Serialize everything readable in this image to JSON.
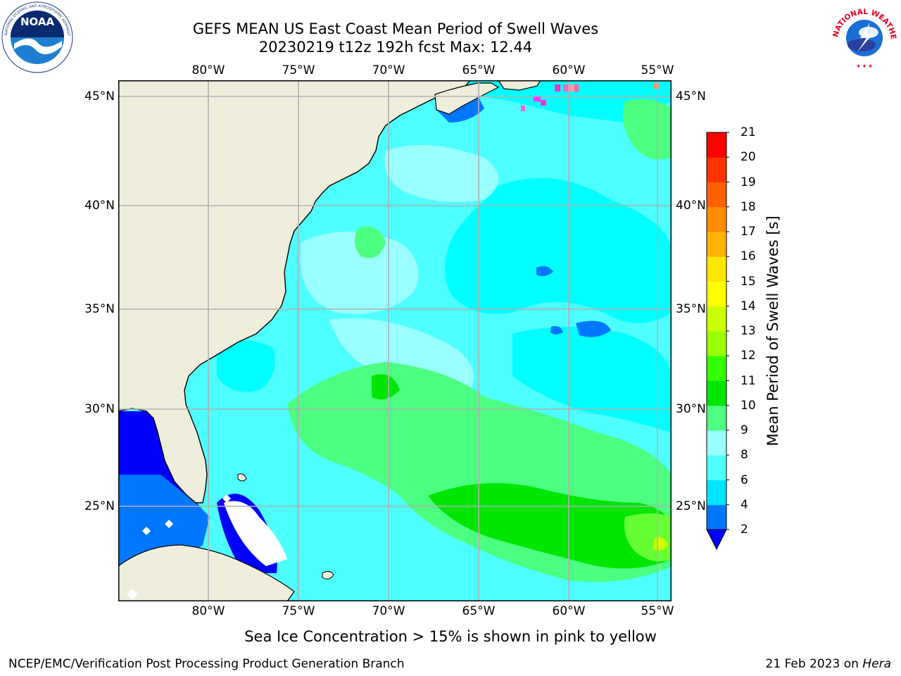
{
  "header": {
    "title_line1": "GEFS MEAN US East Coast Mean Period of Swell Waves",
    "title_line2": "20230219 t12z 192h fcst   Max: 12.44"
  },
  "logos": {
    "left": {
      "name": "NOAA",
      "text": "NOAA",
      "ring_text": "NATIONAL OCEANIC AND ATMOSPHERIC ADMINISTRATION · U.S. DEPARTMENT OF COMMERCE"
    },
    "right": {
      "name": "National Weather Service",
      "ring_text": "NATIONAL WEATHER SERVICE"
    }
  },
  "map": {
    "lon_labels": [
      "80°W",
      "75°W",
      "70°W",
      "65°W",
      "60°W",
      "55°W"
    ],
    "lat_labels": [
      "45°N",
      "40°N",
      "35°N",
      "30°N",
      "25°N"
    ],
    "colors": {
      "land": "#efeedd",
      "ocean_base": "#4dffff",
      "grid": "#b0b0b0",
      "coast": "#000000"
    }
  },
  "colorbar": {
    "label": "Mean Period of Swell Waves [s]",
    "ticks": [
      "2",
      "4",
      "6",
      "8",
      "9",
      "10",
      "11",
      "12",
      "13",
      "14",
      "15",
      "16",
      "17",
      "18",
      "19",
      "20",
      "21"
    ],
    "colors": [
      "#0077ff",
      "#00e5ff",
      "#4dffff",
      "#99ffff",
      "#4dff80",
      "#00e600",
      "#33ff00",
      "#99ff00",
      "#ccff00",
      "#ffff00",
      "#ffe600",
      "#ffb300",
      "#ff8c00",
      "#ff6000",
      "#ff3300",
      "#ff0000"
    ],
    "extend_color": "#0000ff"
  },
  "footer": {
    "note": "Sea Ice Concentration > 15% is shown in pink to yellow",
    "branch": "NCEP/EMC/Verification Post Processing Product Generation Branch",
    "date": "21 Feb 2023 on ",
    "machine": "Hera"
  }
}
